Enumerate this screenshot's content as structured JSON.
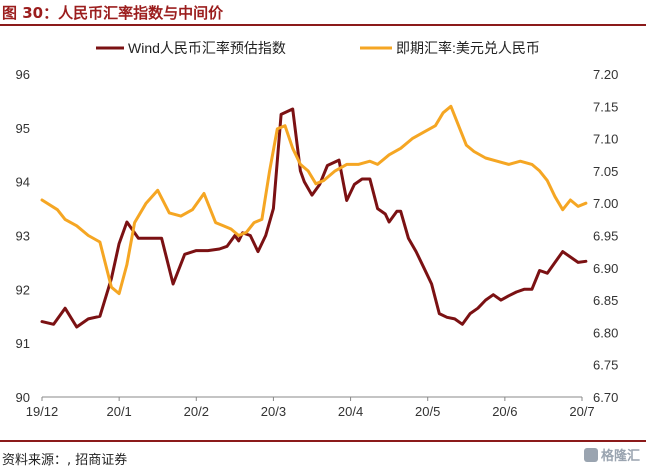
{
  "title": "图 30：人民币汇率指数与中间价",
  "source": "资料来源：, 招商证券",
  "watermark": "格隆汇",
  "chart_data": {
    "type": "line",
    "title": "",
    "x_tick_labels": [
      "19/12",
      "20/1",
      "20/2",
      "20/3",
      "20/4",
      "20/5",
      "20/6",
      "20/7"
    ],
    "y_left": {
      "ylim": [
        90,
        96
      ],
      "ticks": [
        "90",
        "91",
        "92",
        "93",
        "94",
        "95",
        "96"
      ]
    },
    "y_right": {
      "ylim": [
        6.7,
        7.2
      ],
      "ticks": [
        "6.70",
        "6.75",
        "6.80",
        "6.85",
        "6.90",
        "6.95",
        "7.00",
        "7.05",
        "7.10",
        "7.15",
        "7.20"
      ]
    },
    "legend_position": "top",
    "grid": false,
    "colors": {
      "index": "#7b1113",
      "usdcny": "#f5a623"
    },
    "series": [
      {
        "name": "Wind人民币汇率预估指数",
        "axis": "left",
        "x": [
          0,
          0.15,
          0.3,
          0.45,
          0.6,
          0.75,
          0.9,
          1.0,
          1.1,
          1.25,
          1.4,
          1.55,
          1.7,
          1.85,
          2.0,
          2.15,
          2.3,
          2.4,
          2.5,
          2.55,
          2.6,
          2.7,
          2.8,
          2.9,
          3.0,
          3.1,
          3.25,
          3.35,
          3.4,
          3.5,
          3.6,
          3.7,
          3.85,
          3.95,
          4.05,
          4.15,
          4.25,
          4.35,
          4.45,
          4.5,
          4.6,
          4.65,
          4.75,
          4.85,
          4.95,
          5.05,
          5.15,
          5.25,
          5.35,
          5.45,
          5.55,
          5.65,
          5.75,
          5.85,
          5.95,
          6.05,
          6.15,
          6.25,
          6.35,
          6.45,
          6.55,
          6.65,
          6.75,
          6.85,
          6.95,
          7.05
        ],
        "values": [
          91.4,
          91.35,
          91.65,
          91.3,
          91.45,
          91.5,
          92.2,
          92.85,
          93.25,
          92.95,
          92.95,
          92.95,
          92.1,
          92.65,
          92.72,
          92.72,
          92.75,
          92.8,
          93.0,
          92.9,
          93.05,
          93.0,
          92.7,
          93.0,
          93.5,
          95.25,
          95.35,
          94.2,
          94.0,
          93.75,
          93.95,
          94.3,
          94.4,
          93.65,
          93.95,
          94.05,
          94.05,
          93.5,
          93.4,
          93.25,
          93.45,
          93.45,
          92.95,
          92.7,
          92.4,
          92.1,
          91.55,
          91.48,
          91.45,
          91.35,
          91.55,
          91.65,
          91.8,
          91.9,
          91.8,
          91.88,
          91.95,
          92.0,
          92.0,
          92.35,
          92.3,
          92.5,
          92.7,
          92.6,
          92.5,
          92.52
        ]
      },
      {
        "name": "即期汇率:美元兑人民币",
        "axis": "right",
        "x": [
          0,
          0.2,
          0.3,
          0.45,
          0.6,
          0.75,
          0.9,
          1.0,
          1.1,
          1.2,
          1.35,
          1.5,
          1.65,
          1.8,
          1.95,
          2.1,
          2.25,
          2.35,
          2.45,
          2.55,
          2.65,
          2.75,
          2.85,
          2.95,
          3.05,
          3.15,
          3.25,
          3.35,
          3.45,
          3.55,
          3.65,
          3.8,
          3.95,
          4.1,
          4.25,
          4.35,
          4.5,
          4.65,
          4.8,
          4.95,
          5.1,
          5.2,
          5.3,
          5.4,
          5.5,
          5.6,
          5.75,
          5.9,
          6.05,
          6.2,
          6.35,
          6.45,
          6.55,
          6.65,
          6.75,
          6.85,
          6.95,
          7.05
        ],
        "values": [
          7.005,
          6.99,
          6.975,
          6.965,
          6.95,
          6.94,
          6.87,
          6.86,
          6.905,
          6.97,
          7.0,
          7.02,
          6.985,
          6.98,
          6.99,
          7.015,
          6.97,
          6.965,
          6.96,
          6.95,
          6.955,
          6.97,
          6.975,
          7.05,
          7.115,
          7.12,
          7.085,
          7.06,
          7.05,
          7.03,
          7.035,
          7.05,
          7.06,
          7.06,
          7.065,
          7.06,
          7.075,
          7.085,
          7.1,
          7.11,
          7.12,
          7.14,
          7.15,
          7.12,
          7.09,
          7.08,
          7.07,
          7.065,
          7.06,
          7.065,
          7.06,
          7.05,
          7.035,
          7.01,
          6.99,
          7.005,
          6.995,
          7.0
        ]
      }
    ]
  }
}
